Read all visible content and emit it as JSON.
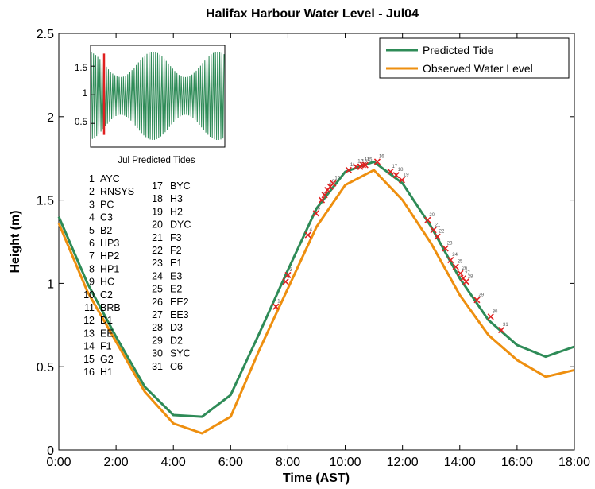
{
  "chart_data": {
    "type": "line",
    "title": "Halifax Harbour Water Level - Jul04",
    "xlabel": "Time (AST)",
    "ylabel": "Height (m)",
    "xlim": [
      0,
      18
    ],
    "ylim": [
      0,
      2.5
    ],
    "x_ticks": [
      0,
      2,
      4,
      6,
      8,
      10,
      12,
      14,
      16,
      18
    ],
    "x_tick_labels": [
      "0:00",
      "2:00",
      "4:00",
      "6:00",
      "8:00",
      "10:00",
      "12:00",
      "14:00",
      "16:00",
      "18:00"
    ],
    "y_ticks": [
      0,
      0.5,
      1,
      1.5,
      2,
      2.5
    ],
    "y_tick_labels": [
      "0",
      "0.5",
      "1",
      "1.5",
      "2",
      "2.5"
    ],
    "legend_position": "top-right",
    "series": [
      {
        "name": "Predicted Tide",
        "color": "#2e8b57",
        "x": [
          0,
          1,
          2,
          3,
          4,
          5,
          6,
          7,
          8,
          9,
          10,
          11,
          12,
          13,
          14,
          15,
          16,
          17,
          18
        ],
        "y": [
          1.4,
          1.0,
          0.68,
          0.38,
          0.21,
          0.2,
          0.33,
          0.7,
          1.08,
          1.45,
          1.67,
          1.73,
          1.6,
          1.34,
          1.03,
          0.78,
          0.63,
          0.56,
          0.62
        ]
      },
      {
        "name": "Observed Water Level",
        "color": "#ee8f0f",
        "x": [
          0,
          1,
          2,
          3,
          4,
          5,
          6,
          7,
          8,
          9,
          10,
          11,
          12,
          13,
          14,
          15,
          16,
          17,
          18
        ],
        "y": [
          1.36,
          0.95,
          0.65,
          0.35,
          0.16,
          0.1,
          0.2,
          0.6,
          0.97,
          1.34,
          1.59,
          1.68,
          1.5,
          1.24,
          0.93,
          0.69,
          0.54,
          0.44,
          0.48
        ]
      }
    ],
    "observation_marks": [
      {
        "n": 1,
        "x": 7.58,
        "y": 0.86
      },
      {
        "n": 2,
        "x": 7.92,
        "y": 1.01
      },
      {
        "n": 3,
        "x": 8.0,
        "y": 1.05
      },
      {
        "n": 4,
        "x": 8.7,
        "y": 1.29
      },
      {
        "n": 5,
        "x": 8.98,
        "y": 1.42
      },
      {
        "n": 6,
        "x": 9.18,
        "y": 1.5
      },
      {
        "n": 7,
        "x": 9.28,
        "y": 1.53
      },
      {
        "n": 8,
        "x": 9.38,
        "y": 1.56
      },
      {
        "n": 9,
        "x": 9.48,
        "y": 1.58
      },
      {
        "n": 10,
        "x": 9.58,
        "y": 1.6
      },
      {
        "n": 11,
        "x": 10.12,
        "y": 1.68
      },
      {
        "n": 12,
        "x": 10.38,
        "y": 1.7
      },
      {
        "n": 13,
        "x": 10.52,
        "y": 1.7
      },
      {
        "n": 14,
        "x": 10.62,
        "y": 1.71
      },
      {
        "n": 15,
        "x": 10.7,
        "y": 1.71
      },
      {
        "n": 16,
        "x": 11.12,
        "y": 1.73
      },
      {
        "n": 17,
        "x": 11.58,
        "y": 1.67
      },
      {
        "n": 18,
        "x": 11.78,
        "y": 1.65
      },
      {
        "n": 19,
        "x": 11.98,
        "y": 1.62
      },
      {
        "n": 20,
        "x": 12.88,
        "y": 1.38
      },
      {
        "n": 21,
        "x": 13.08,
        "y": 1.32
      },
      {
        "n": 22,
        "x": 13.22,
        "y": 1.28
      },
      {
        "n": 23,
        "x": 13.5,
        "y": 1.21
      },
      {
        "n": 24,
        "x": 13.68,
        "y": 1.14
      },
      {
        "n": 25,
        "x": 13.86,
        "y": 1.1
      },
      {
        "n": 26,
        "x": 14.02,
        "y": 1.06
      },
      {
        "n": 27,
        "x": 14.12,
        "y": 1.03
      },
      {
        "n": 28,
        "x": 14.22,
        "y": 1.01
      },
      {
        "n": 29,
        "x": 14.6,
        "y": 0.9
      },
      {
        "n": 30,
        "x": 15.08,
        "y": 0.8
      },
      {
        "n": 31,
        "x": 15.45,
        "y": 0.72
      }
    ],
    "stations_col1": [
      "1 AYC",
      "2 RNSYS",
      "3 PC",
      "4 C3",
      "5 B2",
      "6 HP3",
      "7 HP2",
      "8 HP1",
      "9 HC",
      "10 C2",
      "11 BRB",
      "12 D1",
      "13 EE",
      "14 F1",
      "15 G2",
      "16 H1"
    ],
    "stations_col2": [
      "17 BYC",
      "18 H3",
      "19 H2",
      "20 DYC",
      "21 F3",
      "22 F2",
      "23 E1",
      "24 E3",
      "25 E2",
      "26 EE2",
      "27 EE3",
      "28 D3",
      "29 D2",
      "30 SYC",
      "31 C6"
    ],
    "inset": {
      "label": "Jul Predicted Tides",
      "y_tick_labels": [
        "1.5",
        "1",
        "0.5"
      ],
      "line_color": "#2e8b57",
      "marker_color": "#e02020"
    },
    "grid": false
  }
}
